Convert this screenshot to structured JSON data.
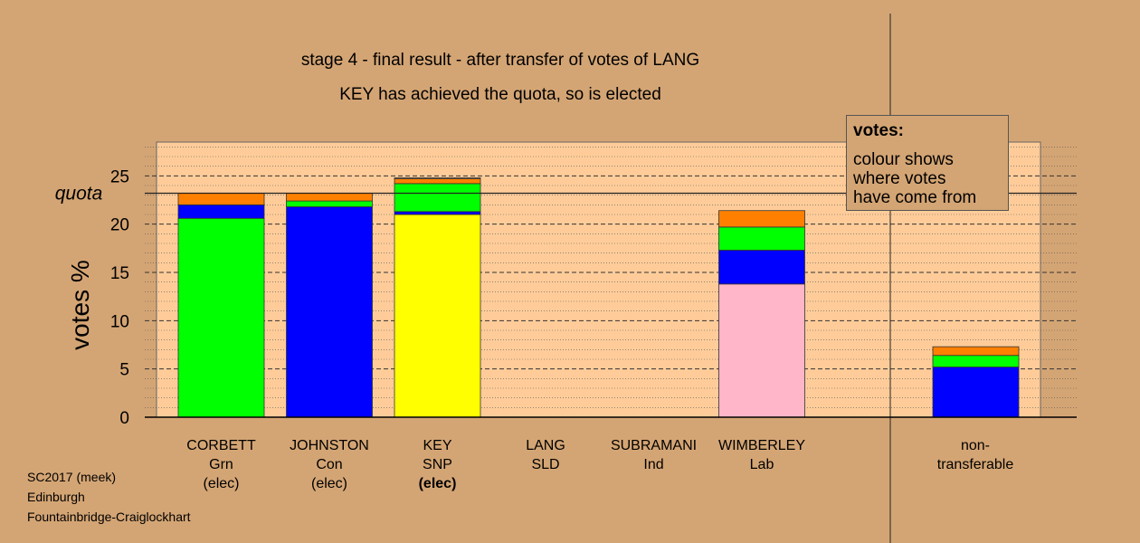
{
  "chart_data": {
    "type": "bar",
    "stacked": true,
    "title": "stage 4 - final result - after transfer of votes of LANG",
    "subtitle": "KEY has achieved the quota, so is elected",
    "ylabel": "votes %",
    "ylim": [
      0,
      28.5
    ],
    "yticks": [
      "0",
      "5",
      "10",
      "15",
      "20",
      "25"
    ],
    "quota": 23.2,
    "quota_label": "quota",
    "categories": [
      {
        "name": "CORBETT",
        "party": "Grn",
        "status": "(elec)",
        "bold_status": false
      },
      {
        "name": "JOHNSTON",
        "party": "Con",
        "status": "(elec)",
        "bold_status": false
      },
      {
        "name": "KEY",
        "party": "SNP",
        "status": "(elec)",
        "bold_status": true
      },
      {
        "name": "LANG",
        "party": "SLD",
        "status": "",
        "bold_status": false
      },
      {
        "name": "SUBRAMANI",
        "party": "Ind",
        "status": "",
        "bold_status": false
      },
      {
        "name": "WIMBERLEY",
        "party": "Lab",
        "status": "",
        "bold_status": false
      }
    ],
    "segments": [
      [
        {
          "color": "#00ff00",
          "value": 20.6
        },
        {
          "color": "#0000ff",
          "value": 1.4
        },
        {
          "color": "#ff8000",
          "value": 1.2
        }
      ],
      [
        {
          "color": "#0000ff",
          "value": 21.8
        },
        {
          "color": "#00ff00",
          "value": 0.6
        },
        {
          "color": "#ff8000",
          "value": 0.8
        }
      ],
      [
        {
          "color": "#ffff00",
          "value": 21.0
        },
        {
          "color": "#0000ff",
          "value": 0.3
        },
        {
          "color": "#00ff00",
          "value": 2.9
        },
        {
          "color": "#ff8000",
          "value": 0.5
        },
        {
          "color": "#d4a574",
          "value": 0.1
        }
      ],
      [],
      [],
      [
        {
          "color": "#ffb6c8",
          "value": 13.8
        },
        {
          "color": "#0000ff",
          "value": 3.5
        },
        {
          "color": "#00ff00",
          "value": 2.4
        },
        {
          "color": "#ff8000",
          "value": 1.7
        }
      ]
    ],
    "non_transferable": {
      "label": "non-\ntransferable",
      "segments": [
        {
          "color": "#0000ff",
          "value": 5.2
        },
        {
          "color": "#00ff00",
          "value": 1.2
        },
        {
          "color": "#ff8000",
          "value": 0.9
        }
      ]
    },
    "plot_background": "#ffcc99"
  },
  "key_box": {
    "title": "votes:",
    "lines": [
      "colour shows",
      "where votes",
      "have come from"
    ]
  },
  "footer": {
    "line1": "SC2017 (meek)",
    "line2": "Edinburgh",
    "line3": "Fountainbridge-Craiglockhart"
  }
}
